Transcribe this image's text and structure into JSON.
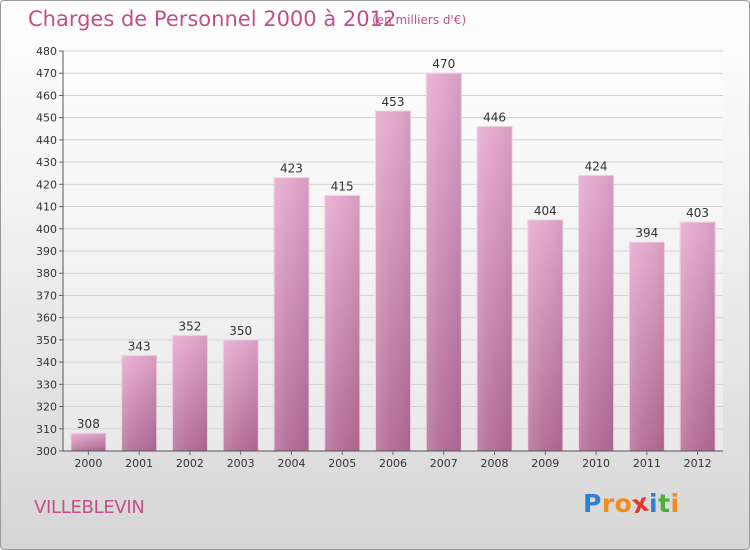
{
  "chart_data": {
    "type": "bar",
    "title": "Charges de Personnel 2000 à 2012",
    "unit_note": "(en milliers d'€)",
    "categories": [
      "2000",
      "2001",
      "2002",
      "2003",
      "2004",
      "2005",
      "2006",
      "2007",
      "2008",
      "2009",
      "2010",
      "2011",
      "2012"
    ],
    "values": [
      308,
      343,
      352,
      350,
      423,
      415,
      453,
      470,
      446,
      404,
      424,
      394,
      403
    ],
    "ylim": [
      300,
      480
    ],
    "yticks": [
      300,
      310,
      320,
      330,
      340,
      350,
      360,
      370,
      380,
      390,
      400,
      410,
      420,
      430,
      440,
      450,
      460,
      470,
      480
    ],
    "grid": true,
    "bar_color": "#d98cbb"
  },
  "location": "VILLEBLEVIN",
  "logo": {
    "letters": [
      "P",
      "r",
      "o",
      "x",
      "i",
      "t",
      "i"
    ],
    "colors": [
      "#2e7fd0",
      "#f08c1e",
      "#f08c1e",
      "#e23a2e",
      "#2e7fd0",
      "#4cae3c",
      "#f08c1e"
    ]
  }
}
